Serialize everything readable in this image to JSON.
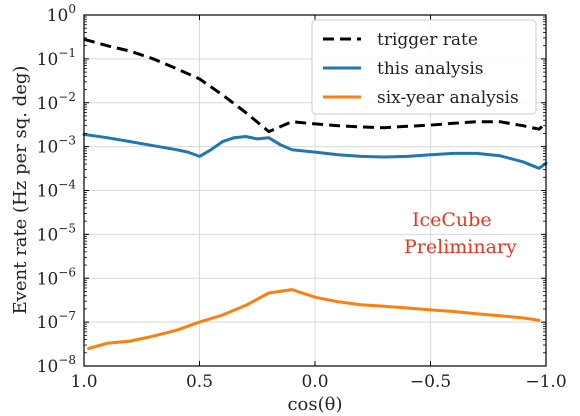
{
  "chart_data": {
    "type": "line",
    "xlabel": "cos(θ)",
    "ylabel": "Event rate (Hz per sq. deg)",
    "x_axis": {
      "lim": [
        1.0,
        -1.0
      ],
      "reversed": true,
      "ticks": [
        1.0,
        0.5,
        0.0,
        -0.5,
        -1.0
      ],
      "tick_labels": [
        "1.0",
        "0.5",
        "0.0",
        "−0.5",
        "−1.0"
      ]
    },
    "y_axis": {
      "scale": "log",
      "lim": [
        1e-08,
        1
      ],
      "ticks": [
        1e-08,
        1e-07,
        1e-06,
        1e-05,
        0.0001,
        0.001,
        0.01,
        0.1,
        1
      ],
      "tick_base": "10",
      "tick_exponents": [
        "−8",
        "−7",
        "−6",
        "−5",
        "−4",
        "−3",
        "−2",
        "−1",
        "0"
      ]
    },
    "grid": true,
    "legend_position": "top-right",
    "annotation": {
      "lines": [
        "IceCube",
        "Preliminary"
      ],
      "color": "#ee3322"
    },
    "series": [
      {
        "name": "trigger rate",
        "color": "#000000",
        "style": "dashed",
        "x": [
          1.0,
          0.9,
          0.8,
          0.7,
          0.6,
          0.5,
          0.4,
          0.3,
          0.2,
          0.1,
          0.0,
          -0.1,
          -0.2,
          -0.3,
          -0.4,
          -0.5,
          -0.6,
          -0.7,
          -0.8,
          -0.9,
          -0.97,
          -1.0
        ],
        "y": [
          0.28,
          0.2,
          0.15,
          0.1,
          0.06,
          0.035,
          0.015,
          0.006,
          0.0022,
          0.0037,
          0.0033,
          0.003,
          0.0028,
          0.0027,
          0.0029,
          0.0031,
          0.0034,
          0.0037,
          0.0037,
          0.003,
          0.0025,
          0.0035
        ]
      },
      {
        "name": "this analysis",
        "color": "#1f77b4",
        "style": "solid",
        "x": [
          1.0,
          0.9,
          0.8,
          0.7,
          0.6,
          0.55,
          0.5,
          0.45,
          0.4,
          0.35,
          0.3,
          0.25,
          0.2,
          0.15,
          0.1,
          0.0,
          -0.1,
          -0.2,
          -0.3,
          -0.4,
          -0.5,
          -0.6,
          -0.7,
          -0.8,
          -0.9,
          -0.97,
          -1.0
        ],
        "y": [
          0.0019,
          0.0016,
          0.0013,
          0.00105,
          0.00085,
          0.00075,
          0.0006,
          0.00085,
          0.0013,
          0.0016,
          0.0017,
          0.0015,
          0.0016,
          0.0011,
          0.00085,
          0.00075,
          0.00065,
          0.0006,
          0.00058,
          0.0006,
          0.00065,
          0.0007,
          0.0007,
          0.00062,
          0.00045,
          0.00032,
          0.00042
        ]
      },
      {
        "name": "six-year analysis",
        "color": "#ff7f0e",
        "style": "solid",
        "x": [
          0.98,
          0.9,
          0.8,
          0.7,
          0.6,
          0.5,
          0.4,
          0.3,
          0.2,
          0.1,
          0.0,
          -0.1,
          -0.2,
          -0.3,
          -0.4,
          -0.5,
          -0.6,
          -0.7,
          -0.8,
          -0.9,
          -0.97
        ],
        "y": [
          2.5e-08,
          3.3e-08,
          3.7e-08,
          4.8e-08,
          6.5e-08,
          1e-07,
          1.45e-07,
          2.4e-07,
          4.6e-07,
          5.5e-07,
          3.7e-07,
          2.9e-07,
          2.5e-07,
          2.3e-07,
          2.1e-07,
          1.9e-07,
          1.75e-07,
          1.55e-07,
          1.4e-07,
          1.25e-07,
          1.1e-07
        ]
      }
    ]
  }
}
